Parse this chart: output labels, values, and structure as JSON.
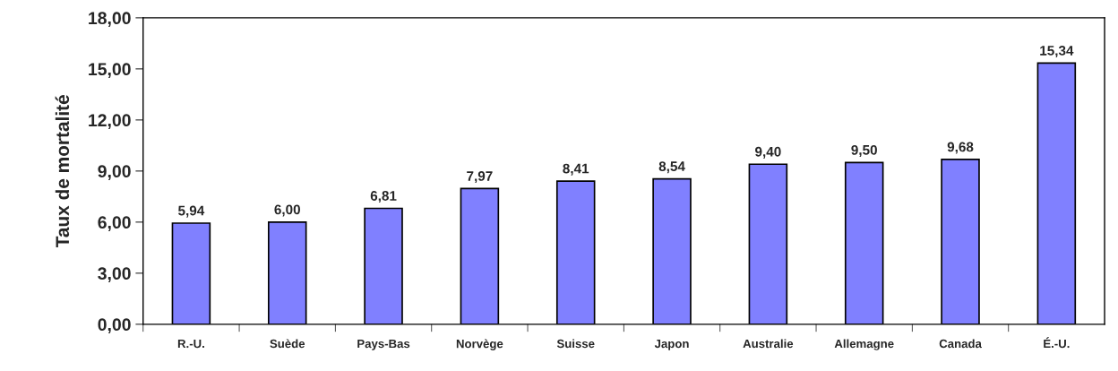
{
  "chart_data": {
    "type": "bar",
    "ylabel": "Taux de mortalité",
    "categories": [
      "R.-U.",
      "Suède",
      "Pays-Bas",
      "Norvège",
      "Suisse",
      "Japon",
      "Australie",
      "Allemagne",
      "Canada",
      "É.-U."
    ],
    "values": [
      5.94,
      6.0,
      6.81,
      7.97,
      8.41,
      8.54,
      9.4,
      9.5,
      9.68,
      15.34
    ],
    "value_labels": [
      "5,94",
      "6,00",
      "6,81",
      "7,97",
      "8,41",
      "8,54",
      "9,40",
      "9,50",
      "9,68",
      "15,34"
    ],
    "color": "#8080ff",
    "ylim": [
      0,
      18
    ],
    "yticks": [
      {
        "value": 0,
        "label": "0,00"
      },
      {
        "value": 3,
        "label": "3,00"
      },
      {
        "value": 6,
        "label": "6,00"
      },
      {
        "value": 9,
        "label": "9,00"
      },
      {
        "value": 12,
        "label": "12,00"
      },
      {
        "value": 15,
        "label": "15,00"
      },
      {
        "value": 18,
        "label": "18,00"
      }
    ],
    "grid": false
  }
}
